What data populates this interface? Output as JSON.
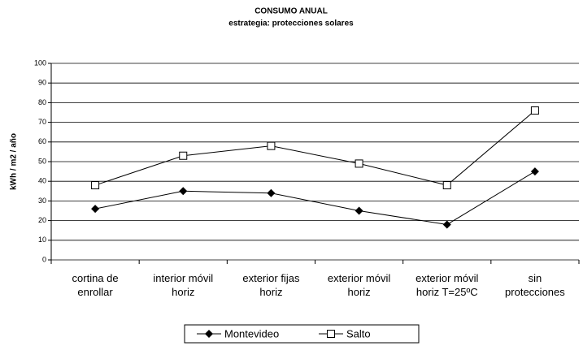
{
  "chart_data": {
    "type": "line",
    "title": "CONSUMO ANUAL",
    "subtitle": "estrategia: protecciones solares",
    "y_label": "kWh / m2 / año",
    "categories": [
      "cortina de\nenrollar",
      "interior móvil\nhoriz",
      "exterior fijas\nhoriz",
      "exterior móvil\nhoriz",
      "exterior móvil\nhoriz T=25ºC",
      "sin\nprotecciones"
    ],
    "series": [
      {
        "name": "Montevideo",
        "color": "#000000",
        "marker": "diamond",
        "values": [
          26,
          35,
          34,
          25,
          18,
          45
        ]
      },
      {
        "name": "Salto",
        "color": "#000000",
        "marker": "square",
        "values": [
          38,
          53,
          58,
          49,
          38,
          76
        ]
      }
    ],
    "ylim": [
      0,
      100
    ],
    "yticks": [
      0,
      10,
      20,
      30,
      40,
      50,
      60,
      70,
      80,
      90,
      100
    ],
    "grid": true,
    "legend": "bottom"
  }
}
